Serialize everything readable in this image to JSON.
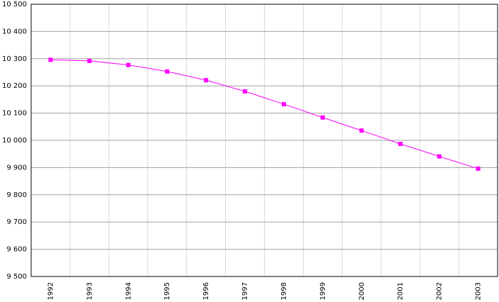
{
  "chart_data": {
    "type": "line",
    "categories": [
      "1992",
      "1993",
      "1994",
      "1995",
      "1996",
      "1997",
      "1998",
      "1999",
      "2000",
      "2001",
      "2002",
      "2003"
    ],
    "series": [
      {
        "color": "#ff00ff",
        "values": [
          10296,
          10292,
          10277,
          10253,
          10221,
          10180,
          10133,
          10084,
          10036,
          9987,
          9941,
          9896
        ]
      }
    ],
    "ylim": [
      9500,
      10500
    ],
    "yticks": [
      {
        "value": 9500,
        "label": "9 500"
      },
      {
        "value": 9600,
        "label": "9 600"
      },
      {
        "value": 9700,
        "label": "9 700"
      },
      {
        "value": 9800,
        "label": "9 800"
      },
      {
        "value": 9900,
        "label": "9 900"
      },
      {
        "value": 10000,
        "label": "10 000"
      },
      {
        "value": 10100,
        "label": "10 100"
      },
      {
        "value": 10200,
        "label": "10 200"
      },
      {
        "value": 10300,
        "label": "10 300"
      },
      {
        "value": 10400,
        "label": "10 400"
      },
      {
        "value": 10500,
        "label": "10 500"
      }
    ],
    "grid": true
  }
}
